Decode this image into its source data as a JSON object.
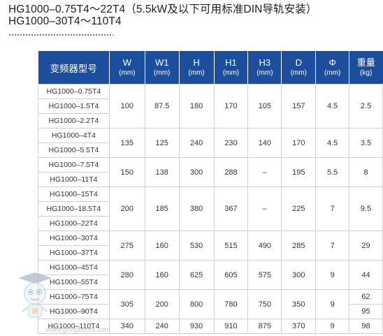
{
  "title": {
    "line1": "HG1000–0.75T4～22T4（5.5kW及以下可用标准DIN导轨安装）",
    "line2": "HG1000–30T4～110T4"
  },
  "table": {
    "headers": [
      {
        "name": "变频器型号",
        "unit": ""
      },
      {
        "name": "W",
        "unit": "(mm)"
      },
      {
        "name": "W1",
        "unit": "(mm)"
      },
      {
        "name": "H",
        "unit": "(mm)"
      },
      {
        "name": "H1",
        "unit": "(mm)"
      },
      {
        "name": "H3",
        "unit": "(mm)"
      },
      {
        "name": "D",
        "unit": "(mm)"
      },
      {
        "name": "Φ",
        "unit": "(mm)"
      },
      {
        "name": "重量",
        "unit": "(kg)"
      }
    ],
    "models": [
      "HG1000–0.75T4",
      "HG1000–1.5T4",
      "HG1000–2.2T4",
      "HG1000–4T4",
      "HG1000–5.5T4",
      "HG1000–7.5T4",
      "HG1000–11T4",
      "HG1000–15T4",
      "HG1000–18.5T4",
      "HG1000–22T4",
      "HG1000–30T4",
      "HG1000–37T4",
      "HG1000–45T4",
      "HG1000–55T4",
      "HG1000–75T4",
      "HG1000–90T4",
      "HG1000–110T4"
    ],
    "groups": [
      {
        "W": "100",
        "W1": "87.5",
        "H": "180",
        "H1": "170",
        "H3": "105",
        "D": "157",
        "phi": "4.5",
        "weight": "2.5"
      },
      {
        "W": "135",
        "W1": "125",
        "H": "240",
        "H1": "230",
        "H3": "140",
        "D": "170",
        "phi": "4.5",
        "weight": "3.5"
      },
      {
        "W": "150",
        "W1": "138",
        "H": "300",
        "H1": "288",
        "H3": "–",
        "D": "195",
        "phi": "5.5",
        "weight": "8"
      },
      {
        "W": "200",
        "W1": "185",
        "H": "380",
        "H1": "367",
        "H3": "–",
        "D": "225",
        "phi": "7",
        "weight": "9.5"
      },
      {
        "W": "275",
        "W1": "160",
        "H": "530",
        "H1": "515",
        "H3": "490",
        "D": "285",
        "phi": "7",
        "weight": "29"
      },
      {
        "W": "280",
        "W1": "160",
        "H": "625",
        "H1": "605",
        "H3": "575",
        "D": "300",
        "phi": "9",
        "weight": "44"
      },
      {
        "W": "305",
        "W1": "200",
        "H": "800",
        "H1": "780",
        "H3": "750",
        "D": "350",
        "phi": "9",
        "weight_a": "62",
        "weight_b": "95"
      },
      {
        "W": "340",
        "W1": "240",
        "H": "930",
        "H1": "910",
        "H3": "875",
        "D": "370",
        "phi": "9",
        "weight": "98"
      }
    ]
  },
  "watermark": {
    "text": "www.gongboshi.com",
    "icon": "robot-mascot-icon"
  }
}
